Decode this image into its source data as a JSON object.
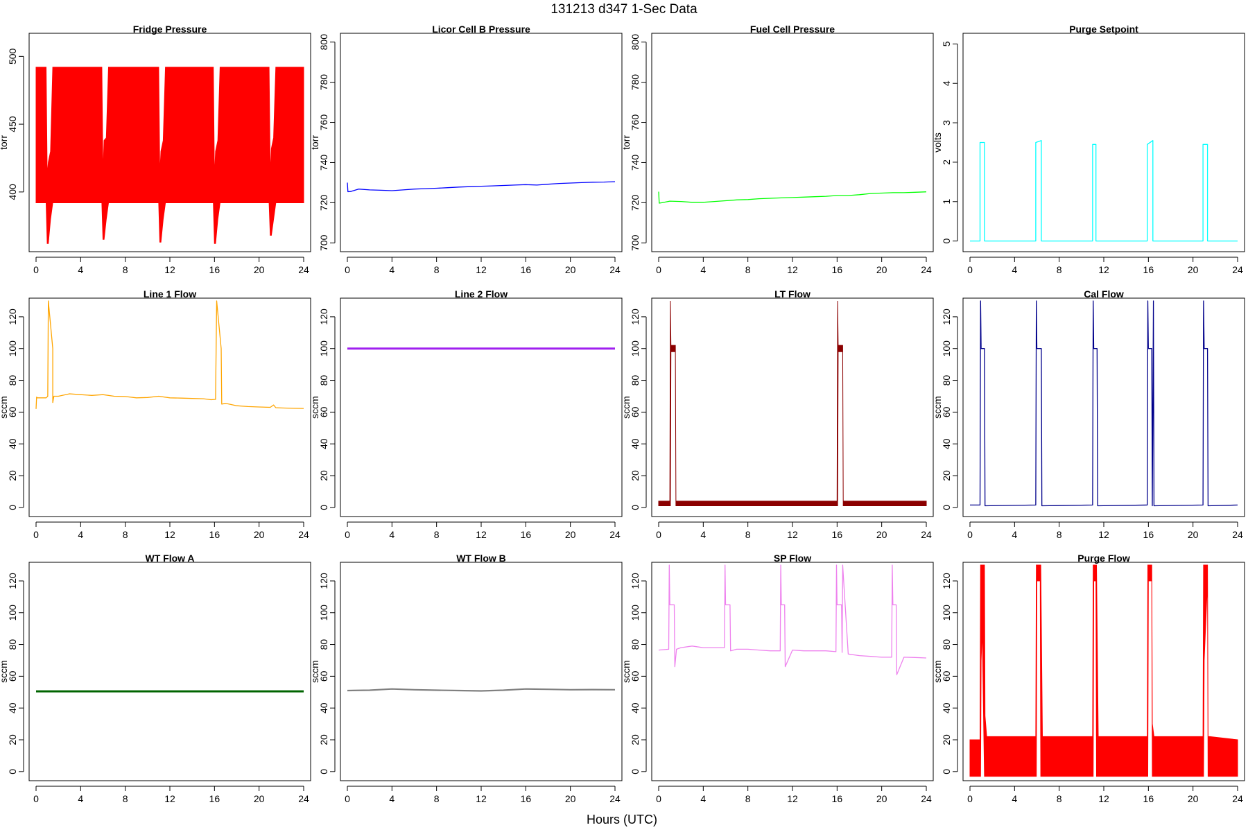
{
  "title": "131213    d347    1-Sec Data",
  "xlabel": "Hours (UTC)",
  "colors": {
    "fridge": "#ff0000",
    "licor": "#0000ff",
    "fuel": "#00ff00",
    "purge_setpoint": "#00ffff",
    "line1": "#ffa500",
    "line2": "#a020f0",
    "lt": "#8b0000",
    "cal": "#00008b",
    "wta": "#006400",
    "wtb": "#808080",
    "sp": "#ee82ee",
    "purge_flow": "#ff0000"
  },
  "chart_data": [
    {
      "type": "line",
      "title": "Fridge Pressure",
      "ylabel": "torr",
      "xlim": [
        0,
        24
      ],
      "ylim": [
        358,
        515
      ],
      "xticks": [
        "0",
        "4",
        "8",
        "12",
        "16",
        "20",
        "24"
      ],
      "yticks": [
        "400",
        "450",
        "500"
      ],
      "series": [
        {
          "color": "fridge",
          "style": "band",
          "x": [
            0,
            0.9,
            1.0,
            1.1,
            1.3,
            1.5,
            5.9,
            6.0,
            6.1,
            6.3,
            6.5,
            11.0,
            11.1,
            11.2,
            11.4,
            11.6,
            15.9,
            16.0,
            16.1,
            16.3,
            16.5,
            20.9,
            21.0,
            21.1,
            21.3,
            21.5,
            24
          ],
          "lo": [
            392,
            392,
            362,
            362,
            380,
            392,
            392,
            365,
            365,
            380,
            392,
            392,
            363,
            363,
            380,
            392,
            392,
            362,
            362,
            380,
            392,
            392,
            368,
            368,
            380,
            392,
            392
          ],
          "hi": [
            492,
            492,
            412,
            422,
            430,
            492,
            492,
            412,
            438,
            440,
            492,
            492,
            412,
            430,
            438,
            492,
            492,
            410,
            430,
            438,
            492,
            492,
            412,
            432,
            440,
            492,
            492
          ]
        }
      ]
    },
    {
      "type": "line",
      "title": "Licor Cell B Pressure",
      "ylabel": "torr",
      "xlim": [
        0,
        24
      ],
      "ylim": [
        697,
        803
      ],
      "xticks": [
        "0",
        "4",
        "8",
        "12",
        "16",
        "20",
        "24"
      ],
      "yticks": [
        "700",
        "720",
        "740",
        "760",
        "780",
        "800"
      ],
      "series": [
        {
          "color": "licor",
          "x": [
            0,
            0.05,
            0.3,
            1,
            2,
            3,
            4,
            5,
            6,
            7,
            8,
            9,
            10,
            11,
            12,
            13,
            14,
            15,
            16,
            17,
            18,
            19,
            20,
            21,
            22,
            23,
            24
          ],
          "y": [
            730,
            725.5,
            725.6,
            726.8,
            726.4,
            726.2,
            726,
            726.4,
            726.8,
            727,
            727.2,
            727.5,
            727.8,
            728,
            728.2,
            728.4,
            728.6,
            728.8,
            729,
            728.8,
            729.2,
            729.6,
            729.8,
            730,
            730.2,
            730.3,
            730.5
          ]
        }
      ]
    },
    {
      "type": "line",
      "title": "Fuel Cell Pressure",
      "ylabel": "torr",
      "xlim": [
        0,
        24
      ],
      "ylim": [
        697,
        803
      ],
      "xticks": [
        "0",
        "4",
        "8",
        "12",
        "16",
        "20",
        "24"
      ],
      "yticks": [
        "700",
        "720",
        "740",
        "760",
        "780",
        "800"
      ],
      "series": [
        {
          "color": "fuel",
          "x": [
            0,
            0.05,
            0.3,
            1,
            2,
            3,
            4,
            5,
            6,
            7,
            8,
            9,
            10,
            11,
            12,
            13,
            14,
            15,
            16,
            17,
            18,
            19,
            20,
            21,
            22,
            23,
            24
          ],
          "y": [
            725.5,
            719.8,
            720,
            720.8,
            720.6,
            720.2,
            720.2,
            720.6,
            721,
            721.4,
            721.6,
            722,
            722.2,
            722.4,
            722.6,
            722.8,
            723,
            723.2,
            723.6,
            723.6,
            724,
            724.6,
            724.8,
            725,
            725,
            725.2,
            725.4
          ]
        }
      ]
    },
    {
      "type": "line",
      "title": "Purge Setpoint",
      "ylabel": "volts",
      "xlim": [
        0,
        24
      ],
      "ylim": [
        -0.2,
        5.2
      ],
      "xticks": [
        "0",
        "4",
        "8",
        "12",
        "16",
        "20",
        "24"
      ],
      "yticks": [
        "0",
        "1",
        "2",
        "3",
        "4",
        "5"
      ],
      "series": [
        {
          "color": "purge_setpoint",
          "x": [
            0,
            0.9,
            0.9,
            1.3,
            1.3,
            5.9,
            5.9,
            6.4,
            6.4,
            11.0,
            11.0,
            11.3,
            11.3,
            15.9,
            15.9,
            16.4,
            16.4,
            20.9,
            20.9,
            21.3,
            21.3,
            24
          ],
          "y": [
            0,
            0,
            2.5,
            2.5,
            0,
            0,
            2.5,
            2.55,
            0,
            0,
            2.45,
            2.45,
            0,
            0,
            2.45,
            2.55,
            0,
            0,
            2.45,
            2.45,
            0,
            0
          ]
        }
      ]
    },
    {
      "type": "line",
      "title": "Line 1 Flow",
      "ylabel": "sccm",
      "xlim": [
        0,
        24
      ],
      "ylim": [
        -4,
        130
      ],
      "xticks": [
        "0",
        "4",
        "8",
        "12",
        "16",
        "20",
        "24"
      ],
      "yticks": [
        "0",
        "20",
        "40",
        "60",
        "80",
        "100",
        "120"
      ],
      "series": [
        {
          "color": "line1",
          "x": [
            0,
            0.05,
            0.1,
            0.9,
            1.05,
            1.1,
            1.5,
            1.5,
            1.6,
            2,
            3,
            4,
            5,
            6,
            7,
            8,
            9,
            10,
            11,
            12,
            13,
            14,
            15,
            15.7,
            16.1,
            16.2,
            16.6,
            16.65,
            17,
            18,
            19,
            20,
            21,
            21.3,
            21.5,
            22,
            23,
            24
          ],
          "y": [
            62,
            69.5,
            69,
            69,
            70,
            130,
            100,
            66,
            70,
            70,
            71.5,
            71,
            70.5,
            71,
            70,
            69.8,
            69,
            69.2,
            70,
            69,
            68.8,
            68.6,
            68.4,
            67.8,
            68,
            130,
            100,
            65,
            65.5,
            64,
            63.5,
            63.2,
            63,
            64.5,
            62.8,
            62.6,
            62.4,
            62.3
          ]
        }
      ]
    },
    {
      "type": "line",
      "title": "Line 2 Flow",
      "ylabel": "sccm",
      "xlim": [
        0,
        24
      ],
      "ylim": [
        -4,
        130
      ],
      "xticks": [
        "0",
        "4",
        "8",
        "12",
        "16",
        "20",
        "24"
      ],
      "yticks": [
        "0",
        "20",
        "40",
        "60",
        "80",
        "100",
        "120"
      ],
      "series": [
        {
          "color": "line2",
          "x": [
            0,
            24
          ],
          "y": [
            100,
            100
          ]
        }
      ]
    },
    {
      "type": "line",
      "title": "LT Flow",
      "ylabel": "sccm",
      "xlim": [
        0,
        24
      ],
      "ylim": [
        -4,
        130
      ],
      "xticks": [
        "0",
        "4",
        "8",
        "12",
        "16",
        "20",
        "24"
      ],
      "yticks": [
        "0",
        "20",
        "40",
        "60",
        "80",
        "100",
        "120"
      ],
      "series": [
        {
          "color": "lt",
          "style": "band",
          "x": [
            0,
            1.0,
            1.05,
            1.1,
            1.5,
            1.55,
            16.0,
            16.05,
            16.1,
            16.5,
            16.55,
            24
          ],
          "lo": [
            1,
            1,
            1,
            98,
            98,
            1,
            1,
            1,
            98,
            98,
            1,
            1
          ],
          "hi": [
            4,
            4,
            130,
            102,
            102,
            4,
            4,
            130,
            102,
            102,
            4,
            4
          ]
        }
      ]
    },
    {
      "type": "line",
      "title": "Cal Flow",
      "ylabel": "sccm",
      "xlim": [
        0,
        24
      ],
      "ylim": [
        -4,
        130
      ],
      "xticks": [
        "0",
        "4",
        "8",
        "12",
        "16",
        "20",
        "24"
      ],
      "yticks": [
        "0",
        "20",
        "40",
        "60",
        "80",
        "100",
        "120"
      ],
      "series": [
        {
          "color": "cal",
          "x": [
            0,
            0.9,
            0.95,
            1.0,
            1.3,
            1.35,
            5.9,
            5.95,
            6.0,
            6.4,
            6.45,
            11.0,
            11.05,
            11.1,
            11.4,
            11.45,
            15.9,
            15.95,
            16.0,
            16.3,
            16.35,
            16.45,
            16.5,
            20.9,
            20.95,
            21.0,
            21.3,
            21.35,
            24
          ],
          "y": [
            1.5,
            1.5,
            130,
            100,
            100,
            1,
            1.5,
            130,
            100,
            100,
            1,
            1.5,
            130,
            100,
            100,
            1,
            1.5,
            130,
            100,
            100,
            1,
            130,
            1,
            1.5,
            130,
            100,
            100,
            1,
            1.5
          ]
        }
      ]
    },
    {
      "type": "line",
      "title": "WT Flow A",
      "ylabel": "sccm",
      "xlim": [
        0,
        24
      ],
      "ylim": [
        -4,
        130
      ],
      "xticks": [
        "0",
        "4",
        "8",
        "12",
        "16",
        "20",
        "24"
      ],
      "yticks": [
        "0",
        "20",
        "40",
        "60",
        "80",
        "100",
        "120"
      ],
      "series": [
        {
          "color": "wta",
          "x": [
            0,
            24
          ],
          "y": [
            50.5,
            50.5
          ]
        }
      ]
    },
    {
      "type": "line",
      "title": "WT Flow B",
      "ylabel": "sccm",
      "xlim": [
        0,
        24
      ],
      "ylim": [
        -4,
        130
      ],
      "xticks": [
        "0",
        "4",
        "8",
        "12",
        "16",
        "20",
        "24"
      ],
      "yticks": [
        "0",
        "20",
        "40",
        "60",
        "80",
        "100",
        "120"
      ],
      "series": [
        {
          "color": "wtb",
          "x": [
            0,
            2,
            4,
            6,
            8,
            10,
            12,
            14,
            16,
            18,
            20,
            22,
            24
          ],
          "y": [
            51,
            51.2,
            52,
            51.5,
            51.2,
            51,
            50.8,
            51.2,
            52,
            51.8,
            51.5,
            51.6,
            51.5
          ]
        }
      ]
    },
    {
      "type": "line",
      "title": "SP Flow",
      "ylabel": "sccm",
      "xlim": [
        0,
        24
      ],
      "ylim": [
        -4,
        130
      ],
      "xticks": [
        "0",
        "4",
        "8",
        "12",
        "16",
        "20",
        "24"
      ],
      "yticks": [
        "0",
        "20",
        "40",
        "60",
        "80",
        "100",
        "120"
      ],
      "series": [
        {
          "color": "sp",
          "x": [
            0,
            0.9,
            0.95,
            1.0,
            1.4,
            1.45,
            1.6,
            2,
            3,
            4,
            5,
            5.9,
            5.95,
            6.0,
            6.4,
            6.45,
            7,
            8,
            9,
            10,
            10.9,
            10.95,
            11.0,
            11.3,
            11.35,
            12,
            13,
            14,
            15,
            15.9,
            15.95,
            16.0,
            16.4,
            16.45,
            16.5,
            17,
            18,
            19,
            20,
            20.9,
            20.95,
            21.0,
            21.3,
            21.35,
            22,
            23,
            24
          ],
          "y": [
            76.5,
            77,
            130,
            105,
            105,
            66,
            77,
            78,
            79,
            78,
            78,
            78,
            130,
            105,
            105,
            76,
            77,
            77,
            76.5,
            76,
            76,
            130,
            105,
            105,
            66,
            76.5,
            76,
            76,
            76,
            75.5,
            130,
            105,
            105,
            75,
            130,
            74,
            73,
            72.5,
            72,
            72,
            130,
            105,
            105,
            61,
            72,
            71.8,
            71.5
          ]
        }
      ]
    },
    {
      "type": "line",
      "title": "Purge Flow",
      "ylabel": "sccm",
      "xlim": [
        0,
        24
      ],
      "ylim": [
        -4,
        130
      ],
      "xticks": [
        "0",
        "4",
        "8",
        "12",
        "16",
        "20",
        "24"
      ],
      "yticks": [
        "0",
        "20",
        "40",
        "60",
        "80",
        "100",
        "120"
      ],
      "series": [
        {
          "color": "purge_flow",
          "style": "band",
          "x": [
            0,
            0.9,
            0.95,
            1.0,
            1.1,
            1.3,
            1.35,
            1.5,
            5.9,
            5.95,
            6.0,
            6.3,
            6.35,
            6.5,
            11.0,
            11.05,
            11.1,
            11.3,
            11.35,
            11.5,
            15.9,
            15.95,
            16.0,
            16.3,
            16.35,
            16.5,
            20.9,
            20.95,
            21.0,
            21.3,
            21.35,
            21.5,
            24
          ],
          "lo": [
            -3,
            -3,
            -3,
            70,
            90,
            -3,
            -3,
            -3,
            -3,
            -3,
            120,
            120,
            -3,
            -3,
            -3,
            -3,
            120,
            120,
            -3,
            -3,
            -3,
            -3,
            120,
            120,
            -3,
            -3,
            -3,
            -3,
            70,
            120,
            -3,
            -3,
            -3
          ],
          "hi": [
            20,
            20,
            130,
            130,
            130,
            130,
            35,
            22,
            22,
            130,
            130,
            130,
            130,
            22,
            22,
            130,
            130,
            130,
            130,
            22,
            22,
            130,
            130,
            130,
            30,
            22,
            22,
            130,
            130,
            130,
            22,
            22,
            20
          ]
        }
      ]
    }
  ]
}
